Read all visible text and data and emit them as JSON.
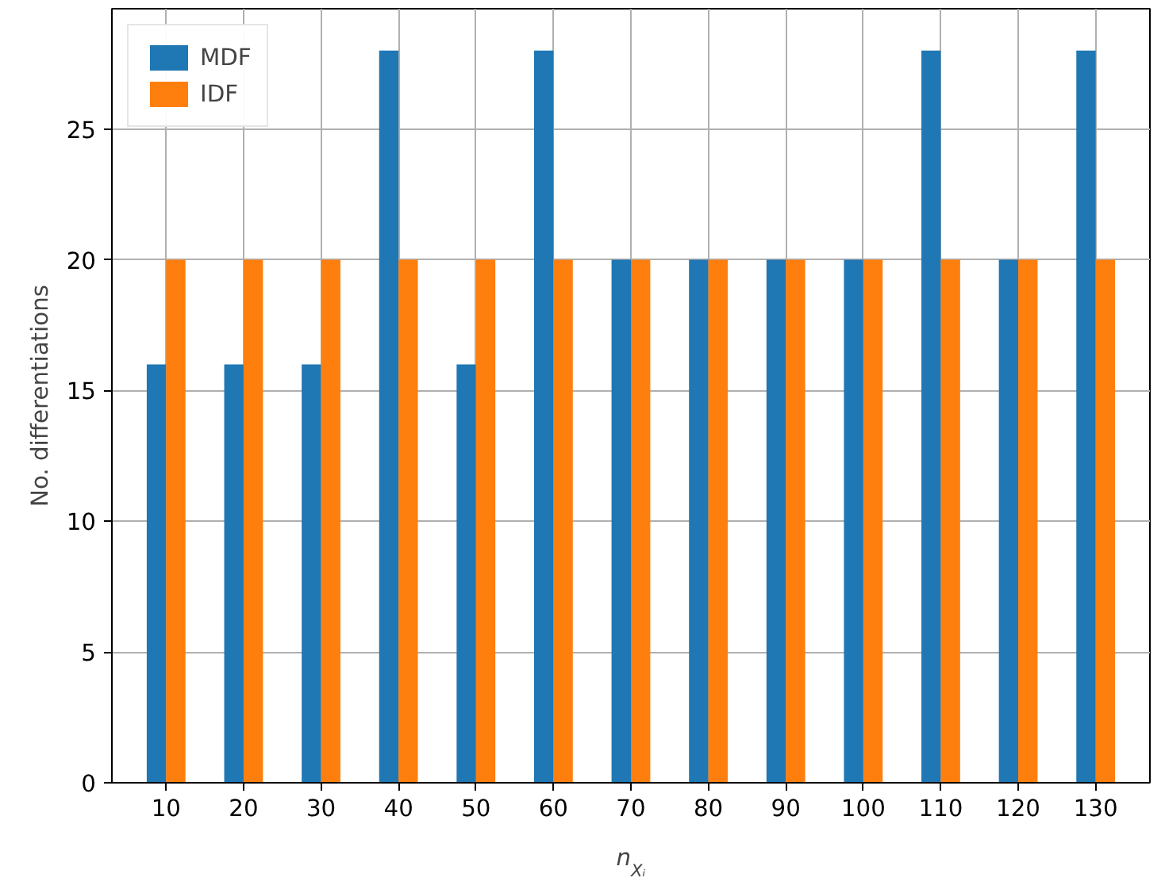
{
  "chart_data": {
    "type": "bar",
    "xlabel": "n$_{Xᵢ}$",
    "ylabel": "No. differentiations",
    "categories": [
      "10",
      "20",
      "30",
      "40",
      "50",
      "60",
      "70",
      "80",
      "90",
      "100",
      "110",
      "120",
      "130"
    ],
    "series": [
      {
        "name": "MDF",
        "color": "#1f77b4",
        "values": [
          16,
          16,
          16,
          28,
          16,
          28,
          20,
          20,
          20,
          20,
          28,
          20,
          28
        ]
      },
      {
        "name": "IDF",
        "color": "#ff7f0e",
        "values": [
          20,
          20,
          20,
          20,
          20,
          20,
          20,
          20,
          20,
          20,
          20,
          20,
          20
        ]
      }
    ],
    "ylim": [
      0,
      29.6
    ],
    "yticks": [
      0,
      5,
      10,
      15,
      20,
      25
    ],
    "grid": true,
    "legend": "top left"
  }
}
